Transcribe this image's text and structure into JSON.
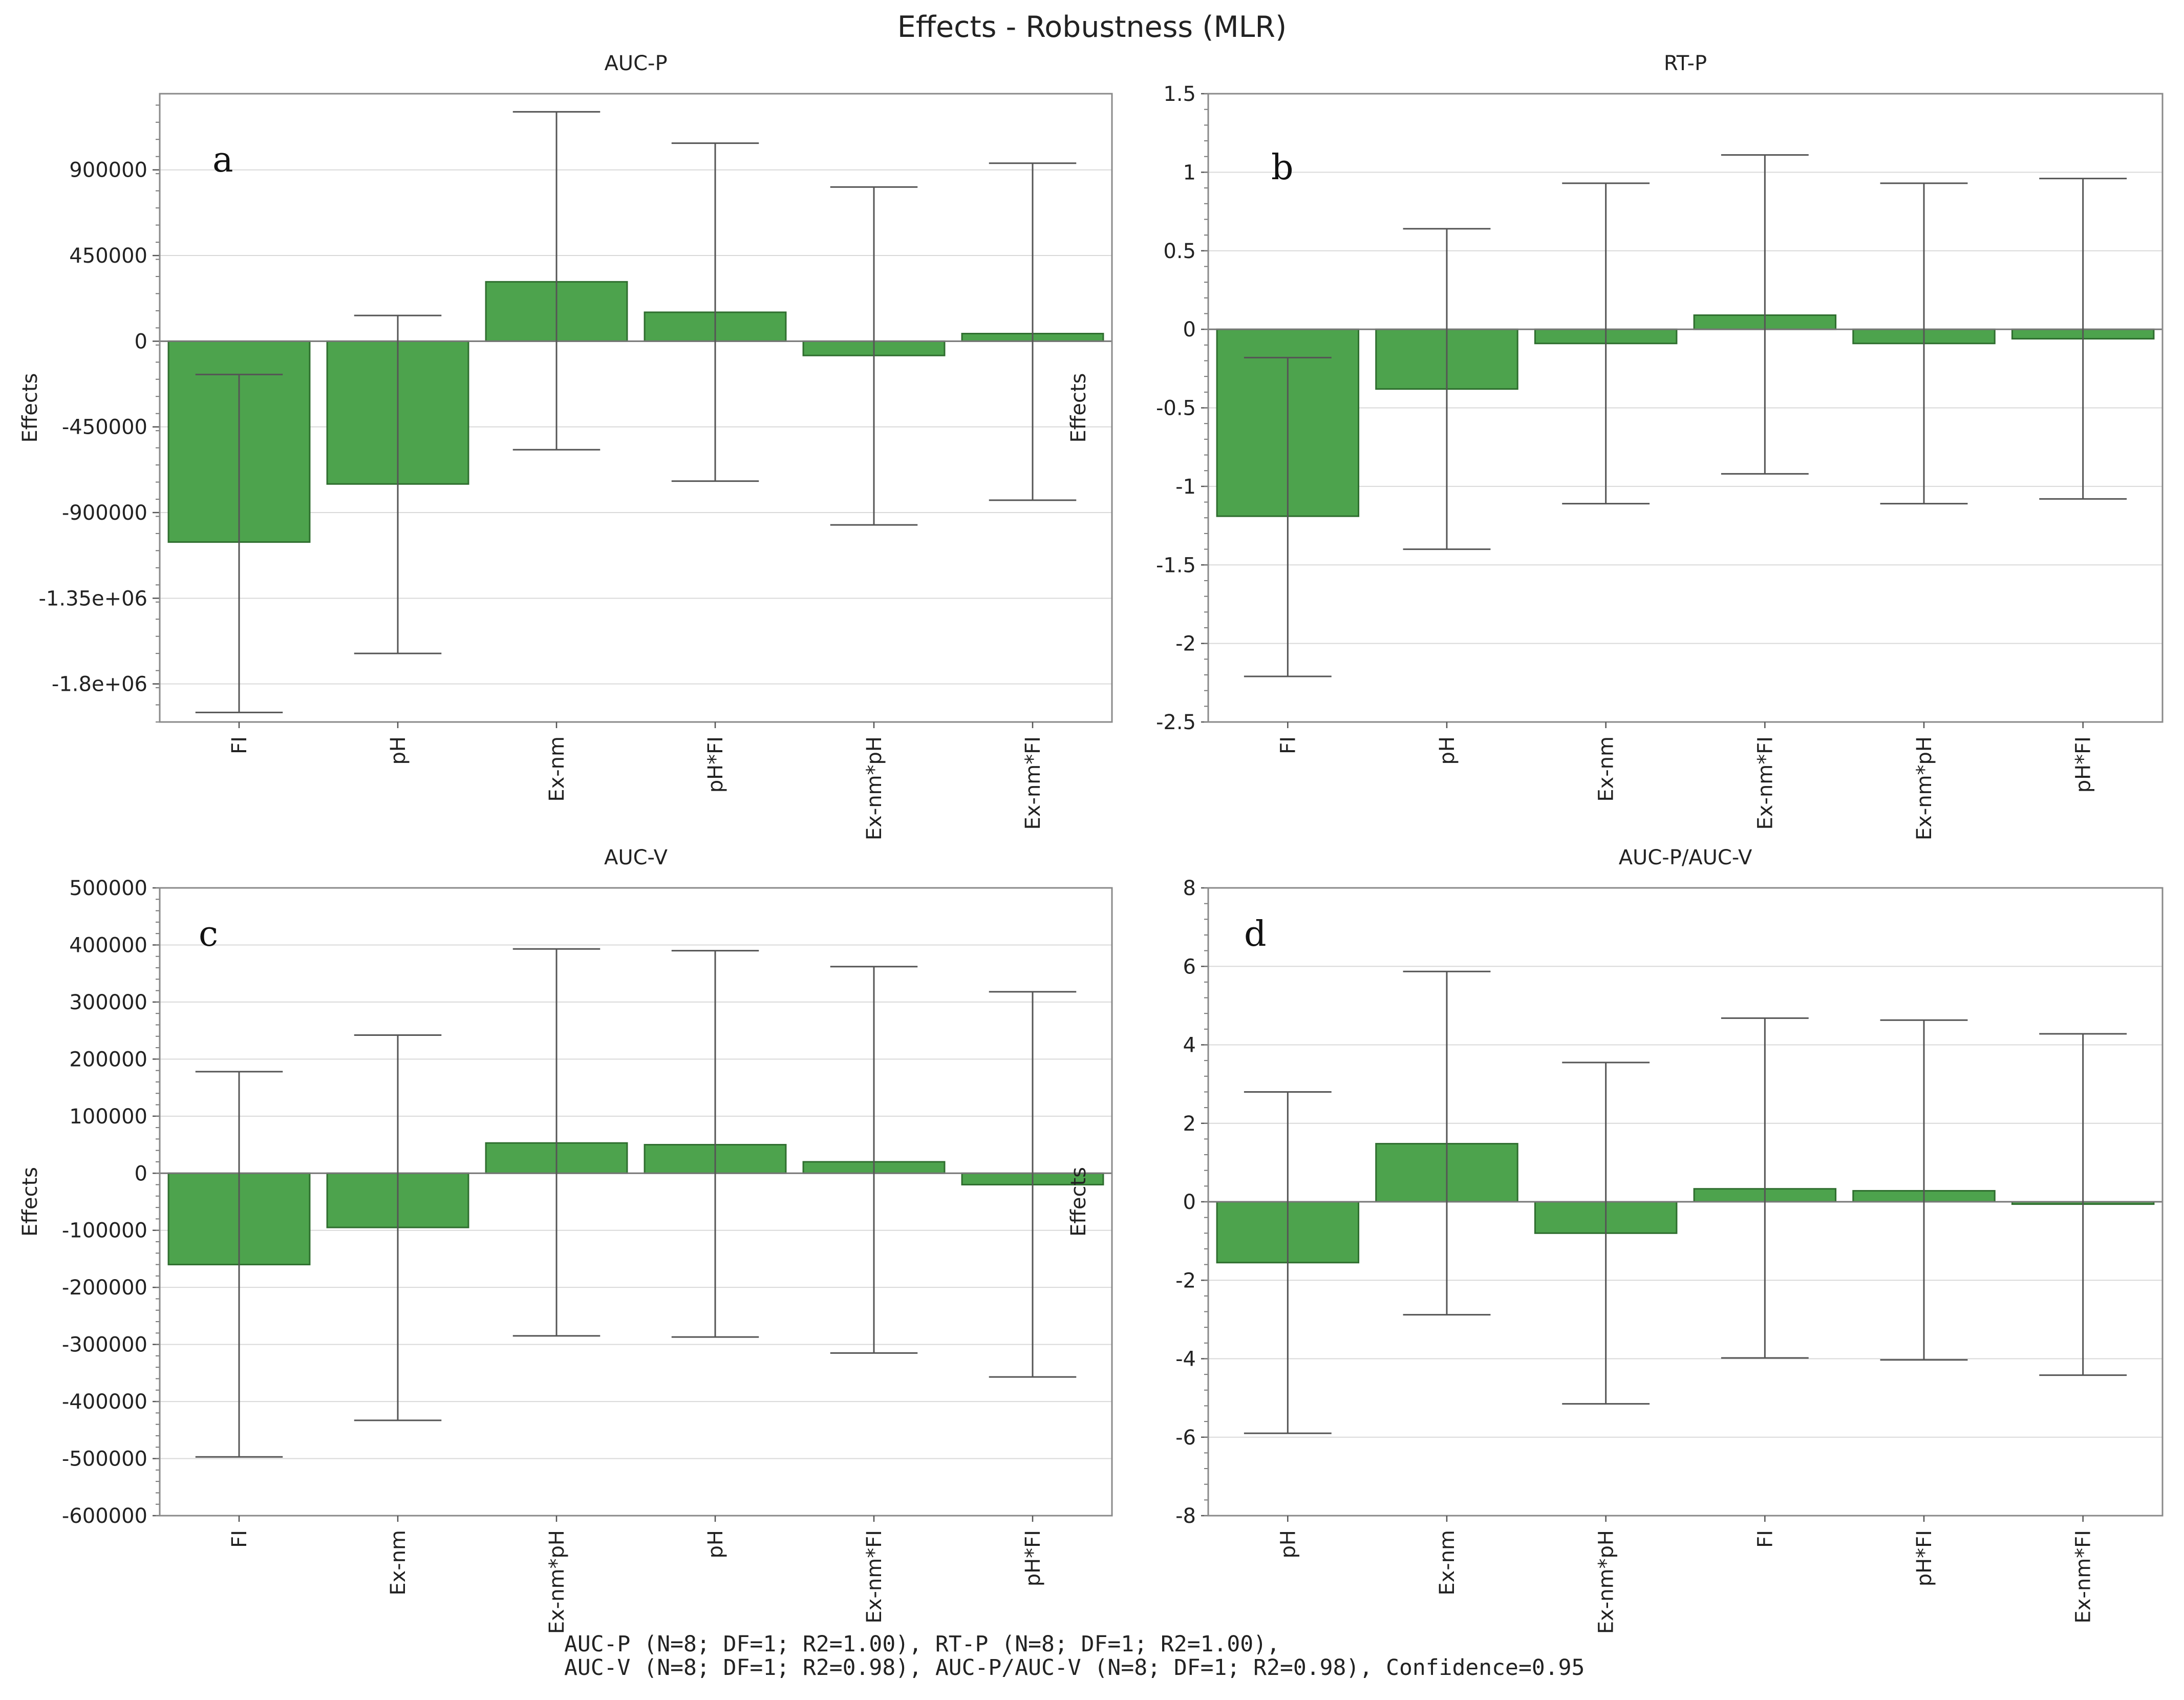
{
  "title": "Effects - Robustness (MLR)",
  "footer": {
    "line1": "AUC-P (N=8; DF=1; R2=1.00), RT-P (N=8; DF=1; R2=1.00),",
    "line2": "AUC-V (N=8; DF=1; R2=0.98), AUC-P/AUC-V (N=8; DF=1; R2=0.98), Confidence=0.95"
  },
  "colors": {
    "bar": "#4da34d",
    "bar_edge": "#2f6e2f",
    "error": "#555555",
    "grid": "#d9d9d9"
  },
  "chart_data": [
    {
      "type": "bar",
      "panel": "a",
      "title": "AUC-P",
      "ylabel": "Effects",
      "xlabel": "",
      "categories": [
        "FI",
        "pH",
        "Ex-nm",
        "pH*FI",
        "Ex-nm*pH",
        "Ex-nm*FI"
      ],
      "values": [
        -1055000,
        -750000,
        312000,
        152000,
        -75000,
        40000
      ],
      "error_low": [
        -1950000,
        -1640000,
        -570000,
        -735000,
        -965000,
        -835000
      ],
      "error_high": [
        -175000,
        135000,
        1205000,
        1040000,
        810000,
        935000
      ],
      "ylim": [
        -2000000,
        1300000
      ],
      "yticks": [
        -1800000,
        -1350000,
        -900000,
        -450000,
        0,
        450000,
        900000
      ],
      "ytick_labels": [
        "-1.8e+06",
        "-1.35e+06",
        "-900000",
        "-450000",
        "0",
        "450000",
        "900000"
      ],
      "grid": true
    },
    {
      "type": "bar",
      "panel": "b",
      "title": "RT-P",
      "ylabel": "Effects",
      "xlabel": "",
      "categories": [
        "FI",
        "pH",
        "Ex-nm",
        "Ex-nm*FI",
        "Ex-nm*pH",
        "pH*FI"
      ],
      "values": [
        -1.19,
        -0.38,
        -0.09,
        0.09,
        -0.09,
        -0.06
      ],
      "error_low": [
        -2.21,
        -1.4,
        -1.11,
        -0.92,
        -1.11,
        -1.08
      ],
      "error_high": [
        -0.18,
        0.64,
        0.93,
        1.11,
        0.93,
        0.96
      ],
      "ylim": [
        -2.5,
        1.5
      ],
      "yticks": [
        -2.5,
        -2,
        -1.5,
        -1,
        -0.5,
        0,
        0.5,
        1,
        1.5
      ],
      "ytick_labels": [
        "-2.5",
        "-2",
        "-1.5",
        "-1",
        "-0.5",
        "0",
        "0.5",
        "1",
        "1.5"
      ],
      "grid": true
    },
    {
      "type": "bar",
      "panel": "c",
      "title": "AUC-V",
      "ylabel": "Effects",
      "xlabel": "",
      "categories": [
        "FI",
        "Ex-nm",
        "Ex-nm*pH",
        "pH",
        "Ex-nm*FI",
        "pH*FI"
      ],
      "values": [
        -160000,
        -95000,
        53000,
        50000,
        20000,
        -20000
      ],
      "error_low": [
        -497000,
        -433000,
        -285000,
        -287000,
        -315000,
        -357000
      ],
      "error_high": [
        178000,
        242000,
        393000,
        390000,
        362000,
        318000
      ],
      "ylim": [
        -600000,
        500000
      ],
      "yticks": [
        -600000,
        -500000,
        -400000,
        -300000,
        -200000,
        -100000,
        0,
        100000,
        200000,
        300000,
        400000,
        500000
      ],
      "ytick_labels": [
        "-600000",
        "-500000",
        "-400000",
        "-300000",
        "-200000",
        "-100000",
        "0",
        "100000",
        "200000",
        "300000",
        "400000",
        "500000"
      ],
      "grid": true
    },
    {
      "type": "bar",
      "panel": "d",
      "title": "AUC-P/AUC-V",
      "ylabel": "Effects",
      "xlabel": "",
      "categories": [
        "pH",
        "Ex-nm",
        "Ex-nm*pH",
        "FI",
        "pH*FI",
        "Ex-nm*FI"
      ],
      "values": [
        -1.55,
        1.48,
        -0.8,
        0.33,
        0.28,
        -0.06
      ],
      "error_low": [
        -5.9,
        -2.88,
        -5.15,
        -3.98,
        -4.03,
        -4.42
      ],
      "error_high": [
        2.8,
        5.87,
        3.55,
        4.68,
        4.63,
        4.28
      ],
      "ylim": [
        -8,
        8
      ],
      "yticks": [
        -8,
        -6,
        -4,
        -2,
        0,
        2,
        4,
        6,
        8
      ],
      "ytick_labels": [
        "-8",
        "-6",
        "-4",
        "-2",
        "0",
        "2",
        "4",
        "6",
        "8"
      ],
      "grid": true
    }
  ]
}
